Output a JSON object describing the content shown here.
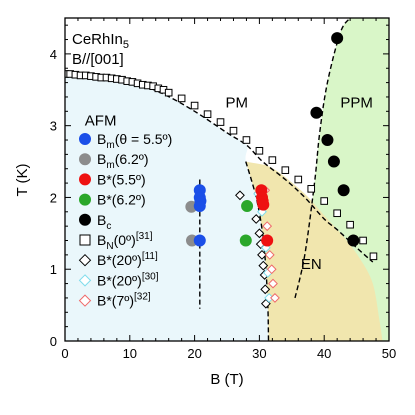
{
  "chart_data": {
    "type": "scatter",
    "sample": {
      "material": "CeRhIn",
      "material_sub": "5",
      "field_dir": "B//[001]"
    },
    "xlabel": "B (T)",
    "ylabel": "T (K)",
    "xlim": [
      0,
      50
    ],
    "ylim": [
      0,
      4.5
    ],
    "xticks": [
      0,
      10,
      20,
      30,
      40,
      50
    ],
    "yticks": [
      0,
      1,
      2,
      3,
      4
    ],
    "x_minor_step": 2,
    "y_minor_step": 0.2,
    "regions": [
      {
        "name": "AFM",
        "color": "#eaf7fb",
        "label": {
          "x": 5.5,
          "y": 3.0
        }
      },
      {
        "name": "PM",
        "color": "#ffffff",
        "label": {
          "x": 26.5,
          "y": 3.25
        }
      },
      {
        "name": "PPM",
        "color": "#d9f6c8",
        "label": {
          "x": 45.0,
          "y": 3.25
        }
      },
      {
        "name": "EN",
        "color": "#f1e6ae",
        "label": {
          "x": 38.0,
          "y": 1.0
        }
      }
    ],
    "phase_boundaries": [
      {
        "name": "AFM boundary",
        "points": [
          [
            0,
            3.75
          ],
          [
            5,
            3.72
          ],
          [
            10,
            3.62
          ],
          [
            15,
            3.45
          ],
          [
            20,
            3.2
          ],
          [
            25,
            2.9
          ],
          [
            28,
            2.73
          ],
          [
            30.5,
            2.5
          ],
          [
            34,
            2.25
          ],
          [
            37,
            2.0
          ],
          [
            40,
            1.7
          ],
          [
            42,
            1.55
          ],
          [
            45,
            1.3
          ],
          [
            47.5,
            1.1
          ]
        ]
      },
      {
        "name": "EN left boundary",
        "points": [
          [
            27.9,
            2.5
          ],
          [
            29.5,
            2.0
          ],
          [
            30.5,
            1.5
          ],
          [
            31.0,
            1.0
          ],
          [
            31.3,
            0.5
          ],
          [
            31.4,
            0.0
          ]
        ]
      },
      {
        "name": "EN right boundary",
        "points": [
          [
            31.0,
            2.45
          ],
          [
            33,
            2.35
          ],
          [
            37,
            2.05
          ],
          [
            40,
            1.75
          ],
          [
            43,
            1.45
          ],
          [
            45.5,
            1.15
          ],
          [
            47.5,
            0.8
          ],
          [
            48.5,
            0.3
          ],
          [
            49,
            0.0
          ]
        ]
      },
      {
        "name": "Bc boundary",
        "points": [
          [
            35.5,
            0.6
          ],
          [
            37,
            1.2
          ],
          [
            38.5,
            2.2
          ],
          [
            39.3,
            2.9
          ],
          [
            40.5,
            3.6
          ],
          [
            42.5,
            4.3
          ],
          [
            44,
            4.5
          ]
        ]
      },
      {
        "name": "Bm vertical",
        "points": [
          [
            20.8,
            2.25
          ],
          [
            20.8,
            0.45
          ]
        ]
      }
    ],
    "series": [
      {
        "name": "B_m(θ = 5.5°)",
        "marker": "circle",
        "filled": true,
        "color": "#1b4fe8",
        "points": [
          [
            20.8,
            2.1
          ],
          [
            20.8,
            2.0
          ],
          [
            20.9,
            1.95
          ],
          [
            20.8,
            1.88
          ],
          [
            20.8,
            1.4
          ]
        ]
      },
      {
        "name": "B_m(6.2°)",
        "marker": "circle",
        "filled": true,
        "color": "#8c8c8c",
        "points": [
          [
            19.5,
            1.87
          ],
          [
            19.6,
            1.4
          ]
        ]
      },
      {
        "name": "B*(5.5°)",
        "marker": "circle",
        "filled": true,
        "color": "#ee1111",
        "points": [
          [
            30.3,
            2.1
          ],
          [
            30.4,
            2.0
          ],
          [
            30.5,
            1.95
          ],
          [
            30.6,
            1.9
          ],
          [
            31.2,
            1.4
          ]
        ]
      },
      {
        "name": "B*(6.2°)",
        "marker": "circle",
        "filled": true,
        "color": "#2aa72a",
        "points": [
          [
            28.1,
            1.88
          ],
          [
            27.9,
            1.4
          ]
        ]
      },
      {
        "name": "B_c",
        "marker": "circle",
        "filled": true,
        "color": "#000000",
        "points": [
          [
            42.0,
            4.22
          ],
          [
            38.8,
            3.18
          ],
          [
            40.5,
            2.8
          ],
          [
            41.5,
            2.5
          ],
          [
            43.0,
            2.1
          ],
          [
            44.5,
            1.4
          ]
        ]
      },
      {
        "name": "B_N(0°)^[31]",
        "marker": "square",
        "filled": false,
        "color": "#000000",
        "points": [
          [
            0,
            3.72
          ],
          [
            0.8,
            3.72
          ],
          [
            1.6,
            3.71
          ],
          [
            2.4,
            3.7
          ],
          [
            3.2,
            3.7
          ],
          [
            4,
            3.69
          ],
          [
            4.8,
            3.68
          ],
          [
            5.6,
            3.67
          ],
          [
            6.4,
            3.67
          ],
          [
            7.2,
            3.66
          ],
          [
            8,
            3.65
          ],
          [
            8.8,
            3.64
          ],
          [
            9.6,
            3.62
          ],
          [
            10.4,
            3.61
          ],
          [
            11.2,
            3.59
          ],
          [
            12,
            3.57
          ],
          [
            12.8,
            3.56
          ],
          [
            13.6,
            3.55
          ],
          [
            14.4,
            3.52
          ],
          [
            15.2,
            3.5
          ],
          [
            16,
            3.46
          ],
          [
            18,
            3.38
          ],
          [
            20,
            3.28
          ],
          [
            22,
            3.16
          ],
          [
            24,
            3.05
          ],
          [
            26,
            2.93
          ],
          [
            28,
            2.8
          ],
          [
            30,
            2.65
          ],
          [
            32,
            2.52
          ],
          [
            34,
            2.38
          ],
          [
            36,
            2.25
          ],
          [
            38,
            2.12
          ],
          [
            40,
            1.95
          ],
          [
            42,
            1.78
          ],
          [
            44,
            1.62
          ],
          [
            46,
            1.4
          ],
          [
            47.6,
            1.18
          ]
        ]
      },
      {
        "name": "B*(20°)^[11]",
        "marker": "diamond",
        "filled": false,
        "color": "#000000",
        "points": [
          [
            27.0,
            2.03
          ],
          [
            29.5,
            1.7
          ],
          [
            30.0,
            1.5
          ],
          [
            30.2,
            1.35
          ],
          [
            30.4,
            1.2
          ],
          [
            30.6,
            1.05
          ],
          [
            30.8,
            0.92
          ],
          [
            30.9,
            0.72
          ],
          [
            31.0,
            0.52
          ]
        ]
      },
      {
        "name": "B*(20°)^[30]",
        "marker": "diamond",
        "filled": false,
        "color": "#7fdcec",
        "points": [
          [
            29.8,
            2.05
          ],
          [
            30.4,
            1.8
          ],
          [
            31.0,
            1.3
          ],
          [
            31.3,
            0.95
          ],
          [
            31.5,
            0.6
          ]
        ]
      },
      {
        "name": "B*(7°)^[32]",
        "marker": "diamond",
        "filled": false,
        "color": "#ef6a6a",
        "points": [
          [
            30.9,
            2.1
          ],
          [
            31.2,
            1.6
          ],
          [
            31.6,
            1.2
          ],
          [
            31.9,
            1.0
          ],
          [
            32.1,
            0.8
          ],
          [
            32.4,
            0.6
          ]
        ]
      }
    ],
    "legend": [
      {
        "text": "B",
        "sub": "m",
        "rest": "(θ = 5.5º)",
        "sup": "",
        "marker": "circle",
        "filled": true,
        "color": "#1b4fe8"
      },
      {
        "text": "B",
        "sub": "m",
        "rest": "(6.2º)",
        "sup": "",
        "marker": "circle",
        "filled": true,
        "color": "#8c8c8c"
      },
      {
        "text": "B*",
        "sub": "",
        "rest": "(5.5º)",
        "sup": "",
        "marker": "circle",
        "filled": true,
        "color": "#ee1111"
      },
      {
        "text": "B*",
        "sub": "",
        "rest": "(6.2º)",
        "sup": "",
        "marker": "circle",
        "filled": true,
        "color": "#2aa72a"
      },
      {
        "text": "B",
        "sub": "c",
        "rest": "",
        "sup": "",
        "marker": "circle",
        "filled": true,
        "color": "#000000"
      },
      {
        "text": "B",
        "sub": "N",
        "rest": "(0º)",
        "sup": "[31]",
        "marker": "square",
        "filled": false,
        "color": "#000000"
      },
      {
        "text": "B*",
        "sub": "",
        "rest": "(20º)",
        "sup": "[11]",
        "marker": "diamond",
        "filled": false,
        "color": "#000000"
      },
      {
        "text": "B*",
        "sub": "",
        "rest": "(20º)",
        "sup": "[30]",
        "marker": "diamond",
        "filled": false,
        "color": "#7fdcec"
      },
      {
        "text": "B*",
        "sub": "",
        "rest": "(7º)",
        "sup": "[32]",
        "marker": "diamond",
        "filled": false,
        "color": "#ef6a6a"
      }
    ]
  }
}
